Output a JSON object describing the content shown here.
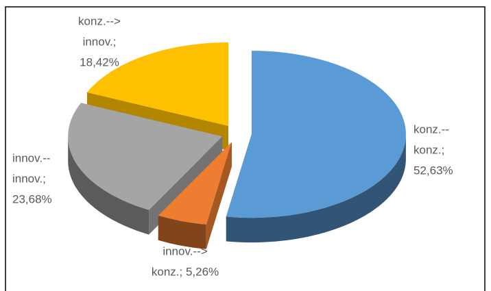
{
  "chart_data": {
    "type": "pie3d",
    "values": [
      52.63,
      5.26,
      23.68,
      18.42
    ],
    "value_labels": [
      [
        "konz.--",
        "konz.;",
        "52,63%"
      ],
      [
        "innov.-->",
        "konz.; 5,26%"
      ],
      [
        "innov.--",
        "innov.;",
        "23,68%"
      ],
      [
        "konz.-->",
        "innov.;",
        "18,42%"
      ]
    ],
    "colors": [
      "#5b9bd5",
      "#ed7d31",
      "#a5a5a5",
      "#ffc000"
    ]
  }
}
